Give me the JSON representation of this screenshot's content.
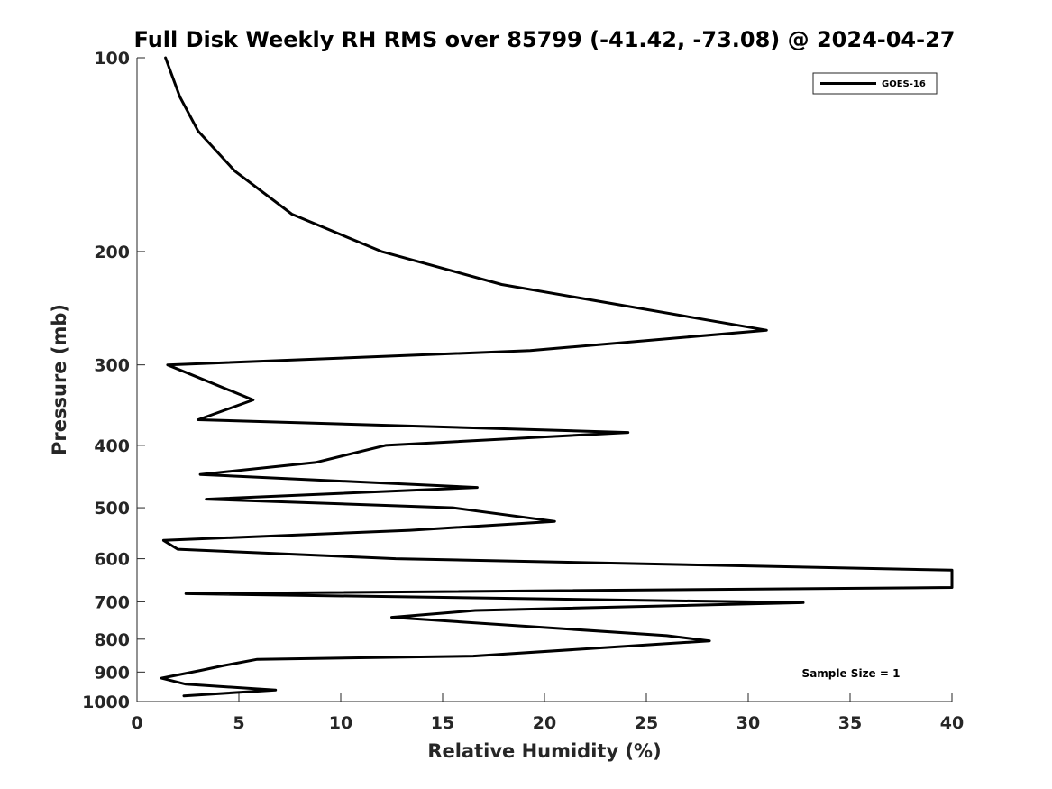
{
  "chart_data": {
    "type": "line",
    "title": "Full Disk Weekly RH RMS over 85799 (-41.42, -73.08) @ 2024-04-27",
    "xlabel": "Relative Humidity (%)",
    "ylabel": "Pressure (mb)",
    "xlim": [
      0,
      40
    ],
    "ylim": [
      100,
      1000
    ],
    "yscale": "log",
    "yreversed": true,
    "grid": false,
    "legend_position": "top-right",
    "annotation": "Sample Size = 1",
    "x_ticks": [
      0,
      5,
      10,
      15,
      20,
      25,
      30,
      35,
      40
    ],
    "x_tick_labels": [
      "0",
      "5",
      "10",
      "15",
      "20",
      "25",
      "30",
      "35",
      "40"
    ],
    "y_ticks": [
      100,
      200,
      300,
      400,
      500,
      600,
      700,
      800,
      900,
      1000
    ],
    "y_tick_labels": [
      "100",
      "200",
      "300",
      "400",
      "500",
      "600",
      "700",
      "800",
      "900",
      "1000"
    ],
    "series": [
      {
        "name": "GOES-16",
        "color": "#000000",
        "points": [
          [
            1.4,
            100
          ],
          [
            2.1,
            115
          ],
          [
            3.0,
            130
          ],
          [
            4.8,
            150
          ],
          [
            7.6,
            175
          ],
          [
            12.0,
            200
          ],
          [
            17.9,
            225
          ],
          [
            30.9,
            265
          ],
          [
            19.3,
            285
          ],
          [
            1.5,
            300
          ],
          [
            5.7,
            340
          ],
          [
            3.0,
            365
          ],
          [
            24.1,
            382
          ],
          [
            12.2,
            400
          ],
          [
            8.8,
            425
          ],
          [
            3.1,
            444
          ],
          [
            16.7,
            465
          ],
          [
            3.4,
            485
          ],
          [
            15.5,
            500
          ],
          [
            20.5,
            525
          ],
          [
            13.4,
            542
          ],
          [
            1.3,
            562
          ],
          [
            2.0,
            580
          ],
          [
            12.7,
            600
          ],
          [
            40.0,
            625
          ],
          [
            40.0,
            665
          ],
          [
            2.4,
            680
          ],
          [
            32.7,
            702
          ],
          [
            16.6,
            722
          ],
          [
            12.5,
            740
          ],
          [
            26.0,
            790
          ],
          [
            28.1,
            805
          ],
          [
            16.5,
            850
          ],
          [
            5.9,
            860
          ],
          [
            4.2,
            880
          ],
          [
            3.1,
            895
          ],
          [
            1.2,
            920
          ],
          [
            2.4,
            940
          ],
          [
            6.8,
            960
          ],
          [
            2.3,
            980
          ]
        ]
      }
    ]
  }
}
